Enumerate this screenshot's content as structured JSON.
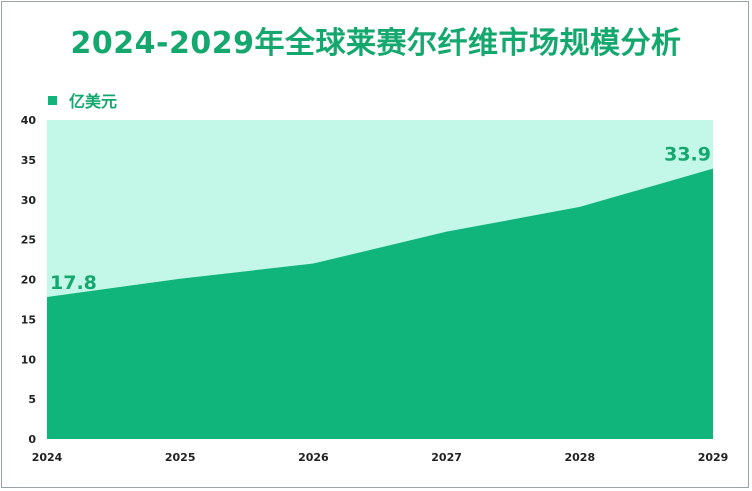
{
  "chart_data": {
    "type": "area",
    "title": "2024-2029年全球莱赛尔纤维市场规模分析",
    "xlabel": "",
    "ylabel": "",
    "x": [
      "2024",
      "2025",
      "2026",
      "2027",
      "2028",
      "2029"
    ],
    "series": [
      {
        "name": "亿美元",
        "values": [
          17.8,
          20.1,
          22.0,
          26.0,
          29.1,
          33.9
        ],
        "color": "#10b57c"
      }
    ],
    "data_labels": [
      {
        "index": 0,
        "text": "17.8"
      },
      {
        "index": 5,
        "text": "33.9"
      }
    ],
    "ylim": [
      0,
      40
    ],
    "yticks": [
      "0",
      "5",
      "10",
      "15",
      "20",
      "25",
      "30",
      "35",
      "40"
    ],
    "plot_background": "#c3f7e8",
    "grid": false,
    "legend_position": "top-left"
  }
}
